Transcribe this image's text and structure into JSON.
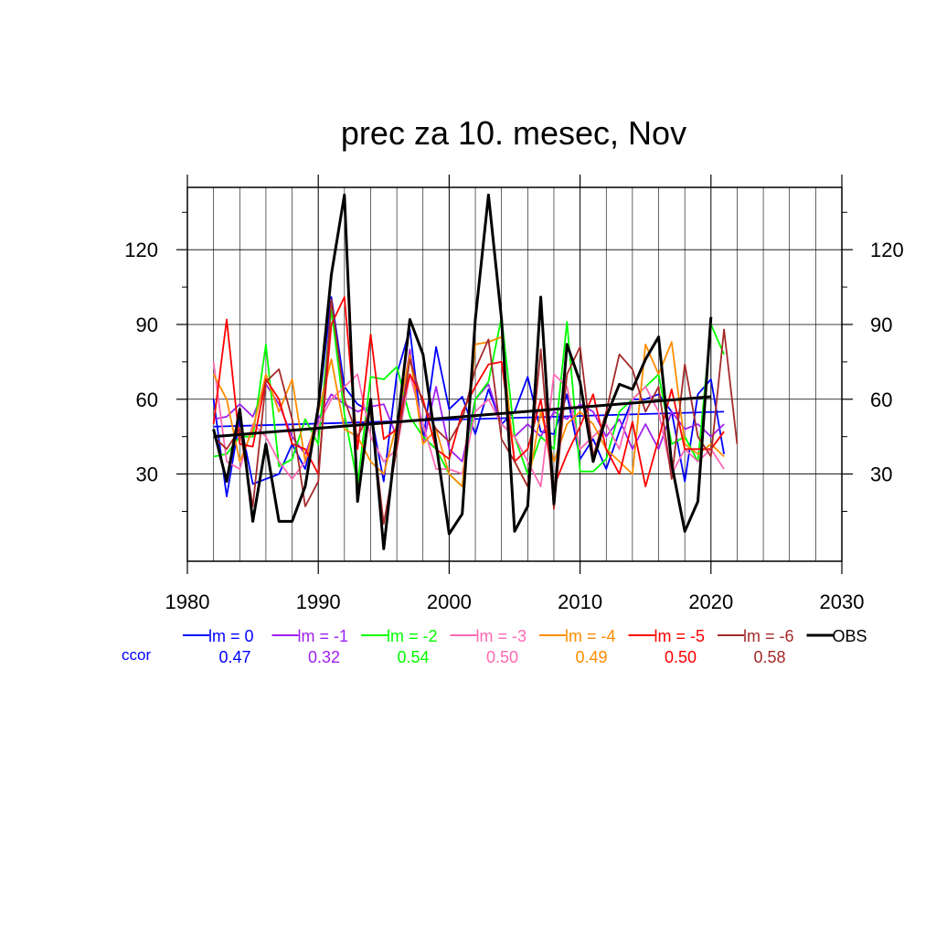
{
  "chart_data": {
    "type": "line",
    "title": "prec za 10. mesec, Nov",
    "xlabel": "",
    "ylabel": "",
    "xlim": [
      1980,
      2030
    ],
    "ylim": [
      -5,
      145
    ],
    "x_ticks": [
      1980,
      1990,
      2000,
      2010,
      2020,
      2030
    ],
    "y_ticks": [
      30,
      60,
      90,
      120
    ],
    "grid": true,
    "legend_position": "bottom",
    "ccor_label": "ccor",
    "series": [
      {
        "name": "lm = 0",
        "color": "#0000ff",
        "ccor": "0.47",
        "x": [
          1982,
          1983,
          1984,
          1985,
          1986,
          1987,
          1988,
          1989,
          1990,
          1991,
          1992,
          1993,
          1994,
          1995,
          1996,
          1997,
          1998,
          1999,
          2000,
          2001,
          2002,
          2003,
          2004,
          2005,
          2006,
          2007,
          2008,
          2009,
          2010,
          2011,
          2012,
          2013,
          2014,
          2015,
          2016,
          2017,
          2018,
          2019,
          2020,
          2021
        ],
        "y": [
          60,
          21,
          52,
          26,
          28,
          30,
          42,
          32,
          55,
          101,
          65,
          58,
          55,
          27,
          70,
          88,
          43,
          81,
          56,
          61,
          46,
          64,
          50,
          55,
          69,
          47,
          46,
          62,
          36,
          44,
          32,
          47,
          60,
          60,
          62,
          55,
          27,
          62,
          68,
          38
        ],
        "trend": [
          49,
          55
        ]
      },
      {
        "name": "lm = -1",
        "color": "#a020f0",
        "ccor": "0.32",
        "x": [
          1982,
          1983,
          1984,
          1985,
          1986,
          1987,
          1988,
          1989,
          1990,
          1991,
          1992,
          1993,
          1994,
          1995,
          1996,
          1997,
          1998,
          1999,
          2000,
          2001,
          2002,
          2003,
          2004,
          2005,
          2006,
          2007,
          2008,
          2009,
          2010,
          2011,
          2012,
          2013,
          2014,
          2015,
          2016,
          2017,
          2018,
          2019,
          2020,
          2021
        ],
        "y": [
          52,
          53,
          58,
          53,
          66,
          58,
          45,
          38,
          52,
          62,
          58,
          55,
          57,
          58,
          45,
          80,
          42,
          65,
          40,
          35,
          60,
          66,
          50,
          45,
          50,
          45,
          55,
          52,
          58,
          55,
          45,
          52,
          40,
          50,
          40,
          55,
          48,
          50,
          45,
          50
        ]
      },
      {
        "name": "lm = -2",
        "color": "#00ff00",
        "ccor": "0.54",
        "x": [
          1982,
          1983,
          1984,
          1985,
          1986,
          1987,
          1988,
          1989,
          1990,
          1991,
          1992,
          1993,
          1994,
          1995,
          1996,
          1997,
          1998,
          1999,
          2000,
          2001,
          2002,
          2003,
          2004,
          2005,
          2006,
          2007,
          2008,
          2009,
          2010,
          2011,
          2012,
          2013,
          2014,
          2015,
          2016,
          2017,
          2018,
          2019,
          2020,
          2021
        ],
        "y": [
          37,
          38,
          45,
          45,
          82,
          33,
          36,
          52,
          42,
          96,
          54,
          26,
          69,
          68,
          73,
          53,
          45,
          40,
          30,
          25,
          60,
          67,
          93,
          45,
          30,
          45,
          40,
          91,
          31,
          31,
          36,
          55,
          60,
          65,
          70,
          42,
          45,
          35,
          90,
          78
        ]
      },
      {
        "name": "lm = -3",
        "color": "#ff69b4",
        "ccor": "0.50",
        "x": [
          1982,
          1983,
          1984,
          1985,
          1986,
          1987,
          1988,
          1989,
          1990,
          1991,
          1992,
          1993,
          1994,
          1995,
          1996,
          1997,
          1998,
          1999,
          2000,
          2001,
          2002,
          2003,
          2004,
          2005,
          2006,
          2007,
          2008,
          2009,
          2010,
          2011,
          2012,
          2013,
          2014,
          2015,
          2016,
          2017,
          2018,
          2019,
          2020,
          2021
        ],
        "y": [
          75,
          35,
          32,
          50,
          45,
          35,
          28,
          35,
          50,
          60,
          65,
          70,
          45,
          35,
          40,
          70,
          50,
          32,
          32,
          30,
          55,
          60,
          50,
          45,
          35,
          25,
          70,
          65,
          40,
          45,
          50,
          40,
          60,
          65,
          55,
          30,
          40,
          35,
          40,
          32
        ]
      },
      {
        "name": "lm = -4",
        "color": "#ff8c00",
        "ccor": "0.49",
        "x": [
          1982,
          1983,
          1984,
          1985,
          1986,
          1987,
          1988,
          1989,
          1990,
          1991,
          1992,
          1993,
          1994,
          1995,
          1996,
          1997,
          1998,
          1999,
          2000,
          2001,
          2002,
          2003,
          2004,
          2005,
          2006,
          2007,
          2008,
          2009,
          2010,
          2011,
          2012,
          2013,
          2014,
          2015,
          2016,
          2017,
          2018,
          2019,
          2020,
          2021
        ],
        "y": [
          70,
          60,
          35,
          48,
          70,
          55,
          68,
          35,
          55,
          76,
          48,
          45,
          35,
          30,
          50,
          78,
          42,
          48,
          30,
          25,
          82,
          83,
          85,
          35,
          25,
          55,
          35,
          50,
          55,
          50,
          40,
          35,
          30,
          82,
          70,
          83,
          42,
          38,
          42,
          37
        ]
      },
      {
        "name": "lm = -5",
        "color": "#ff0000",
        "ccor": "0.50",
        "x": [
          1982,
          1983,
          1984,
          1985,
          1986,
          1987,
          1988,
          1989,
          1990,
          1991,
          1992,
          1993,
          1994,
          1995,
          1996,
          1997,
          1998,
          1999,
          2000,
          2001,
          2002,
          2003,
          2004,
          2005,
          2006,
          2007,
          2008,
          2009,
          2010,
          2011,
          2012,
          2013,
          2014,
          2015,
          2016,
          2017,
          2018,
          2019,
          2020,
          2021
        ],
        "y": [
          50,
          92,
          42,
          41,
          68,
          60,
          42,
          40,
          30,
          90,
          101,
          40,
          86,
          44,
          48,
          70,
          60,
          40,
          36,
          55,
          65,
          74,
          75,
          35,
          40,
          60,
          25,
          38,
          49,
          62,
          40,
          30,
          51,
          25,
          44,
          64,
          40,
          40,
          40,
          47
        ]
      },
      {
        "name": "lm = -6",
        "color": "#a52a2a",
        "ccor": "0.58",
        "x": [
          1982,
          1983,
          1984,
          1985,
          1986,
          1987,
          1988,
          1989,
          1990,
          1991,
          1992,
          1993,
          1994,
          1995,
          1996,
          1997,
          1998,
          1999,
          2000,
          2001,
          2002,
          2003,
          2004,
          2005,
          2006,
          2007,
          2008,
          2009,
          2010,
          2011,
          2012,
          2013,
          2014,
          2015,
          2016,
          2017,
          2018,
          2019,
          2020,
          2021,
          2022
        ],
        "y": [
          45,
          40,
          48,
          17,
          67,
          72,
          52,
          17,
          27,
          100,
          60,
          45,
          55,
          10,
          40,
          76,
          58,
          48,
          43,
          52,
          72,
          84,
          44,
          35,
          25,
          80,
          16,
          70,
          81,
          37,
          55,
          78,
          72,
          55,
          65,
          28,
          74,
          45,
          37,
          88,
          42
        ]
      },
      {
        "name": "OBS",
        "color": "#000000",
        "ccor": "",
        "x": [
          1982,
          1983,
          1984,
          1985,
          1986,
          1987,
          1988,
          1989,
          1990,
          1991,
          1992,
          1993,
          1994,
          1995,
          1996,
          1997,
          1998,
          1999,
          2000,
          2001,
          2002,
          2003,
          2004,
          2005,
          2006,
          2007,
          2008,
          2009,
          2010,
          2011,
          2012,
          2013,
          2014,
          2015,
          2016,
          2017,
          2018,
          2019,
          2020
        ],
        "y": [
          48,
          27,
          56,
          11,
          42,
          11,
          11,
          25,
          57,
          110,
          142,
          19,
          60,
          0,
          47,
          92,
          78,
          42,
          6,
          14,
          92,
          142,
          92,
          7,
          17,
          101,
          18,
          82,
          67,
          35,
          53,
          66,
          64,
          76,
          85,
          34,
          7,
          19,
          93
        ],
        "trend": [
          45,
          61
        ]
      }
    ]
  }
}
